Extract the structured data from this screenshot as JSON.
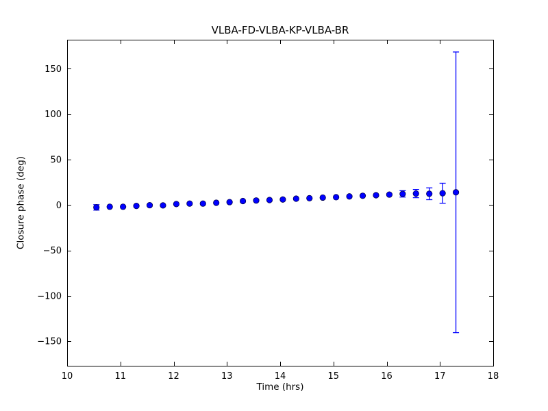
{
  "chart_data": {
    "type": "scatter",
    "title": "VLBA-FD-VLBA-KP-VLBA-BR",
    "xlabel": "Time (hrs)",
    "ylabel": "Closure phase (deg)",
    "xlim": [
      10,
      18
    ],
    "ylim": [
      -177,
      182
    ],
    "x_ticks": [
      10,
      11,
      12,
      13,
      14,
      15,
      16,
      17,
      18
    ],
    "x_tick_labels": [
      "10",
      "11",
      "12",
      "13",
      "14",
      "15",
      "16",
      "17",
      "18"
    ],
    "y_ticks": [
      150,
      100,
      50,
      0,
      -50,
      -100,
      -150
    ],
    "y_tick_labels": [
      "150",
      "100",
      "50",
      "0",
      "−50",
      "−100",
      "−150"
    ],
    "grid": false,
    "legend": "none",
    "marker_color": "#0000ff",
    "marker_edge_color": "#00004d",
    "errorbar_color": "#0000ff",
    "series": [
      {
        "name": "closure phase",
        "marker": "circle",
        "x": [
          10.55,
          10.8,
          11.05,
          11.3,
          11.55,
          11.8,
          12.05,
          12.3,
          12.55,
          12.8,
          13.05,
          13.3,
          13.55,
          13.8,
          14.05,
          14.3,
          14.55,
          14.8,
          15.05,
          15.3,
          15.55,
          15.8,
          16.05,
          16.3,
          16.55,
          16.8,
          17.05,
          17.3
        ],
        "y": [
          -2.6,
          -1.9,
          -1.9,
          -1.0,
          -0.2,
          -0.4,
          1.1,
          1.6,
          1.6,
          2.5,
          3.2,
          4.4,
          5.0,
          5.5,
          6.1,
          7.0,
          7.5,
          8.2,
          8.6,
          9.5,
          10.2,
          10.8,
          11.5,
          12.3,
          12.6,
          12.4,
          13.0,
          14.0
        ],
        "yerr": [
          3,
          0,
          0,
          0,
          0,
          0,
          0,
          0,
          0,
          0,
          0,
          0,
          0,
          0,
          0,
          0,
          0,
          0,
          0,
          0,
          0,
          0,
          0,
          3.5,
          4.5,
          6.5,
          11,
          154.5
        ]
      }
    ]
  }
}
